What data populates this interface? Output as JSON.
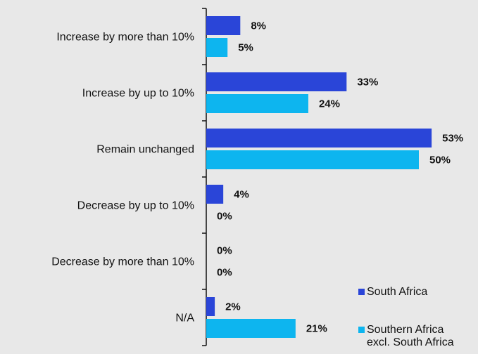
{
  "chart_data": {
    "type": "bar",
    "orientation": "horizontal",
    "title": "",
    "xlabel": "",
    "ylabel": "",
    "xlim": [
      0,
      55
    ],
    "grid": false,
    "legend_position": "bottom-right",
    "categories": [
      "Increase by more than 10%",
      "Increase by up to 10%",
      "Remain unchanged",
      "Decrease by up to 10%",
      "Decrease by more than 10%",
      "N/A"
    ],
    "series": [
      {
        "name": "South Africa",
        "color": "#2a45d8",
        "values": [
          8,
          33,
          53,
          4,
          0,
          2
        ],
        "labels": [
          "8%",
          "33%",
          "53%",
          "4%",
          "0%",
          "2%"
        ]
      },
      {
        "name": "Southern Africa excl. South Africa",
        "name_lines": [
          "Southern Africa",
          "excl. South Africa"
        ],
        "color": "#0db5ef",
        "values": [
          5,
          24,
          50,
          0,
          0,
          21
        ],
        "labels": [
          "5%",
          "24%",
          "50%",
          "0%",
          "0%",
          "21%"
        ]
      }
    ]
  }
}
